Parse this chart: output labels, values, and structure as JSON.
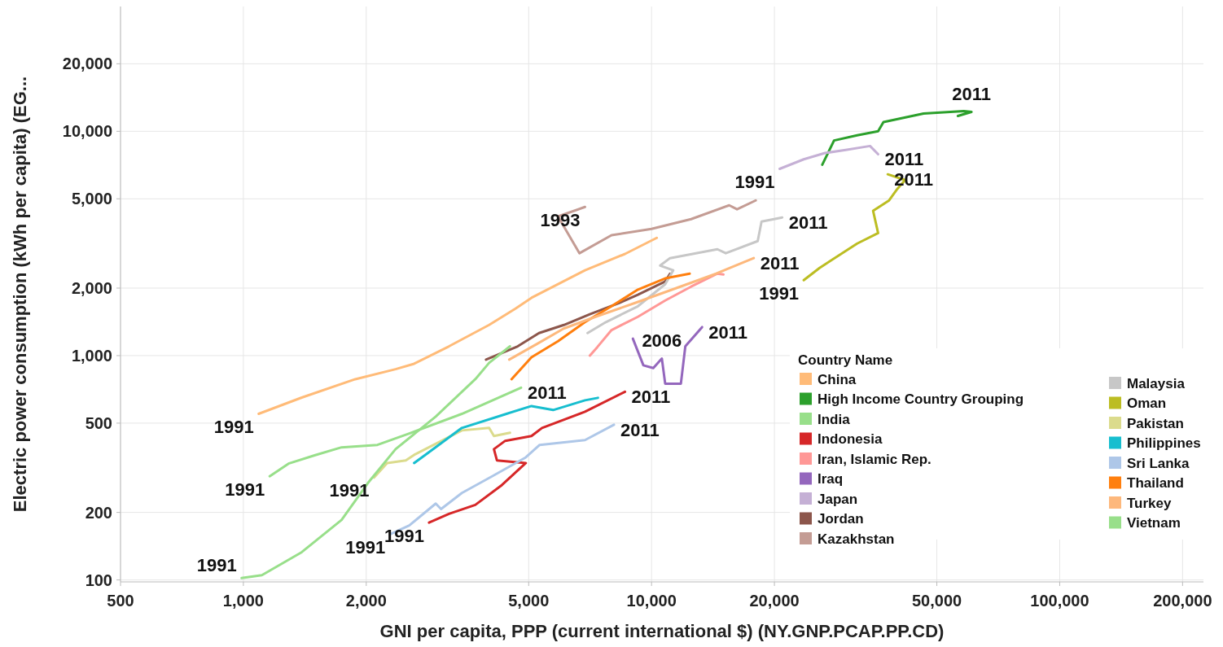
{
  "chart_data": {
    "type": "line",
    "xlabel": "GNI per capita, PPP (current international $) (NY.GNP.PCAP.PP.CD)",
    "ylabel": "Electric power consumption (kWh per capita) (EG...",
    "legend_title": "Country Name",
    "log": "xy",
    "grid": true,
    "legend": "bottom right",
    "line_style": "solid",
    "xlim": [
      500,
      225000
    ],
    "ylim": [
      98,
      36000
    ],
    "xticks": [
      500,
      {
        "value": 1000,
        "label": "1,000"
      },
      {
        "value": 2000,
        "label": "2,000"
      },
      {
        "value": 5000,
        "label": "5,000"
      },
      {
        "value": 10000,
        "label": "10,000"
      },
      {
        "value": 20000,
        "label": "20,000"
      },
      {
        "value": 50000,
        "label": "50,000"
      },
      {
        "value": 100000,
        "label": "100,000"
      },
      {
        "value": 200000,
        "label": "200,000"
      }
    ],
    "yticks": [
      100,
      200,
      500,
      {
        "value": 1000,
        "label": "1,000"
      },
      {
        "value": 2000,
        "label": "2,000"
      },
      {
        "value": 5000,
        "label": "5,000"
      },
      {
        "value": 10000,
        "label": "10,000"
      },
      {
        "value": 20000,
        "label": "20,000"
      }
    ],
    "series": [
      {
        "name": "China",
        "color": "#ffbb78",
        "x": [
          1090,
          1390,
          1880,
          2360,
          2620,
          3190,
          4000,
          4640,
          5080,
          6870,
          8610,
          10300
        ],
        "values": [
          550,
          650,
          785,
          870,
          920,
          1100,
          1370,
          1620,
          1810,
          2400,
          2840,
          3350
        ]
      },
      {
        "name": "High Income Country Grouping",
        "color": "#2ca02c",
        "x": [
          26200,
          28000,
          31900,
          35900,
          37000,
          46400,
          58200,
          60800,
          56300
        ],
        "values": [
          7100,
          9100,
          9600,
          10000,
          11000,
          12000,
          12300,
          12200,
          11700
        ]
      },
      {
        "name": "India",
        "color": "#98df8a",
        "x": [
          1160,
          1290,
          1500,
          1740,
          2130,
          2550,
          3430,
          4790
        ],
        "values": [
          290,
          330,
          360,
          390,
          400,
          450,
          550,
          720
        ]
      },
      {
        "name": "Indonesia",
        "color": "#d62728",
        "x": [
          2850,
          3190,
          3700,
          4300,
          4920,
          4180,
          4110,
          4380,
          5080,
          5390,
          6870,
          8610
        ],
        "values": [
          180,
          197,
          216,
          265,
          332,
          341,
          383,
          417,
          438,
          476,
          562,
          690
        ]
      },
      {
        "name": "Iran, Islamic Rep.",
        "color": "#ff9896",
        "x": [
          7060,
          7360,
          7980,
          9260,
          10800,
          12500,
          14500,
          15000
        ],
        "values": [
          1000,
          1090,
          1300,
          1490,
          1760,
          2030,
          2320,
          2300
        ]
      },
      {
        "name": "Iraq",
        "color": "#9467bd",
        "x": [
          9000,
          9550,
          10100,
          10600,
          10800,
          11800,
          12100,
          13300
        ],
        "values": [
          1190,
          905,
          880,
          970,
          750,
          750,
          1100,
          1340
        ]
      },
      {
        "name": "Japan",
        "color": "#c5b0d5",
        "x": [
          20600,
          23600,
          26600,
          29900,
          34300,
          35900
        ],
        "values": [
          6800,
          7500,
          8000,
          8250,
          8600,
          7900
        ]
      },
      {
        "name": "Jordan",
        "color": "#8c564b",
        "x": [
          3930,
          4700,
          5300,
          6100,
          7060,
          8350,
          9260,
          10800,
          11100
        ],
        "values": [
          960,
          1100,
          1260,
          1370,
          1530,
          1720,
          1870,
          2140,
          2320
        ]
      },
      {
        "name": "Kazakhstan",
        "color": "#c49c94",
        "x": [
          6870,
          5900,
          6660,
          7980,
          10000,
          12500,
          15500,
          16200,
          18000
        ],
        "values": [
          4600,
          4170,
          2860,
          3440,
          3670,
          4060,
          4680,
          4490,
          4920
        ]
      },
      {
        "name": "Malaysia",
        "color": "#c7c7c7",
        "x": [
          6970,
          7730,
          9260,
          10800,
          11300,
          10500,
          11100,
          14500,
          15200,
          18200,
          18600,
          20900
        ],
        "values": [
          1260,
          1410,
          1660,
          2080,
          2400,
          2520,
          2720,
          2980,
          2860,
          3240,
          3960,
          4130
        ]
      },
      {
        "name": "Oman",
        "color": "#bcbd22",
        "x": [
          23600,
          25800,
          31900,
          35900,
          34900,
          38200,
          40000,
          41800,
          37900
        ],
        "values": [
          2170,
          2460,
          3160,
          3520,
          4420,
          4920,
          5530,
          6060,
          6430
        ]
      },
      {
        "name": "Pakistan",
        "color": "#dbdb8d",
        "x": [
          2090,
          2250,
          2500,
          2620,
          3430,
          4000,
          4110,
          4500
        ],
        "values": [
          286,
          332,
          341,
          361,
          464,
          476,
          438,
          453
        ]
      },
      {
        "name": "Philippines",
        "color": "#17becf",
        "x": [
          2620,
          2790,
          3430,
          4380,
          5080,
          5740,
          6870,
          7390
        ],
        "values": [
          332,
          361,
          476,
          548,
          596,
          572,
          632,
          648
        ]
      },
      {
        "name": "Sri Lanka",
        "color": "#aec7e8",
        "x": [
          2290,
          2550,
          2960,
          3050,
          3430,
          4060,
          4920,
          5320,
          6870,
          8090
        ],
        "values": [
          160,
          175,
          219,
          207,
          244,
          289,
          352,
          400,
          420,
          492
        ]
      },
      {
        "name": "Thailand",
        "color": "#ff7f0e",
        "x": [
          4540,
          5080,
          5900,
          6870,
          7980,
          9260,
          10800,
          12400
        ],
        "values": [
          785,
          983,
          1160,
          1410,
          1660,
          1970,
          2210,
          2320
        ]
      },
      {
        "name": "Turkey",
        "color": "#fdb87c",
        "x": [
          4480,
          5250,
          6090,
          7290,
          9140,
          11500,
          14400,
          17800
        ],
        "values": [
          960,
          1130,
          1320,
          1490,
          1720,
          2000,
          2320,
          2720
        ]
      },
      {
        "name": "Vietnam",
        "color": "#98df8a",
        "x": [
          990,
          1110,
          1390,
          1740,
          2030,
          2360,
          2960,
          3700,
          4000,
          4500
        ],
        "values": [
          102,
          105,
          133,
          185,
          274,
          383,
          535,
          785,
          928,
          1100
        ]
      }
    ],
    "annotations": [
      {
        "text": "1991",
        "x": 1090,
        "y": 550
      },
      {
        "text": "1991",
        "x": 1160,
        "y": 290
      },
      {
        "text": "1991",
        "x": 990,
        "y": 102
      },
      {
        "text": "1991",
        "x": 2090,
        "y": 286
      },
      {
        "text": "1991",
        "x": 2290,
        "y": 160
      },
      {
        "text": "1991",
        "x": 2850,
        "y": 180
      },
      {
        "text": "2011",
        "x": 4790,
        "y": 720
      },
      {
        "text": "2006",
        "x": 10600,
        "y": 970
      },
      {
        "text": "2011",
        "x": 8610,
        "y": 690
      },
      {
        "text": "2011",
        "x": 8090,
        "y": 492
      },
      {
        "text": "2011",
        "x": 13300,
        "y": 1340
      },
      {
        "text": "1993",
        "x": 6870,
        "y": 4600
      },
      {
        "text": "1991",
        "x": 20600,
        "y": 6800
      },
      {
        "text": "2011",
        "x": 20900,
        "y": 4130
      },
      {
        "text": "2011",
        "x": 17800,
        "y": 2720
      },
      {
        "text": "1991",
        "x": 23600,
        "y": 2170
      },
      {
        "text": "2011",
        "x": 35900,
        "y": 7900
      },
      {
        "text": "2011",
        "x": 37900,
        "y": 6430
      },
      {
        "text": "2011",
        "x": 60800,
        "y": 12200
      }
    ]
  }
}
